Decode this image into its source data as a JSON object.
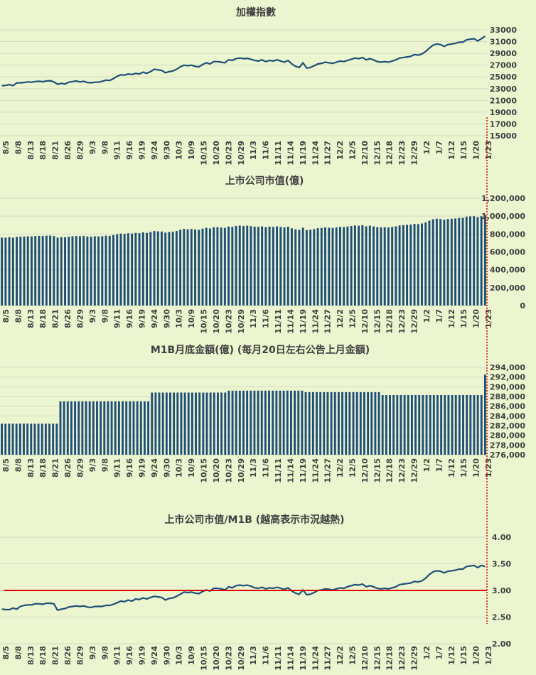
{
  "colors": {
    "background": "#ebf5cf",
    "series": "#1f4e79",
    "grid": "#d6dcc4",
    "reference_line": "#e00000",
    "marker_line": "#e00000",
    "text": "#404040"
  },
  "x_tick_labels": [
    "8/5",
    "8/8",
    "8/13",
    "8/18",
    "8/21",
    "8/26",
    "8/29",
    "9/3",
    "9/8",
    "9/11",
    "9/16",
    "9/19",
    "9/24",
    "9/30",
    "10/3",
    "10/9",
    "10/15",
    "10/20",
    "10/23",
    "10/29",
    "11/3",
    "11/6",
    "11/11",
    "11/14",
    "11/19",
    "11/24",
    "11/27",
    "12/2",
    "12/5",
    "12/10",
    "12/15",
    "12/18",
    "12/23",
    "12/29",
    "1/2",
    "1/7",
    "1/12",
    "1/15",
    "1/20",
    "1/23"
  ],
  "chart_data": [
    {
      "id": "taiex",
      "type": "line",
      "title": "加權指數",
      "y_tick_labels": [
        "33000",
        "31000",
        "29000",
        "27000",
        "25000",
        "23000",
        "21000",
        "19000",
        "17000",
        "15000"
      ],
      "ylim": [
        15000,
        33000
      ],
      "values": [
        23500,
        23550,
        23700,
        23500,
        23980,
        24000,
        24050,
        24150,
        24100,
        24200,
        24250,
        24180,
        24300,
        24350,
        24150,
        23750,
        23900,
        23800,
        24100,
        24200,
        24300,
        24150,
        24250,
        24050,
        24000,
        24100,
        24100,
        24250,
        24450,
        24400,
        24700,
        25100,
        25350,
        25300,
        25500,
        25400,
        25600,
        25500,
        25800,
        25600,
        25900,
        26300,
        26200,
        26100,
        25700,
        25900,
        26000,
        26300,
        26700,
        27000,
        26900,
        27000,
        26800,
        26700,
        27100,
        27400,
        27200,
        27600,
        27600,
        27500,
        27400,
        27900,
        27800,
        28100,
        28200,
        28100,
        28150,
        28000,
        27800,
        27700,
        27900,
        27600,
        27800,
        27700,
        27900,
        27700,
        27500,
        27800,
        27200,
        26800,
        26600,
        27400,
        26500,
        26600,
        26900,
        27200,
        27300,
        27500,
        27400,
        27300,
        27500,
        27700,
        27600,
        27800,
        28000,
        28200,
        28100,
        28300,
        27900,
        28100,
        27900,
        27600,
        27500,
        27600,
        27500,
        27700,
        27900,
        28200,
        28300,
        28400,
        28500,
        28800,
        28700,
        28900,
        29300,
        29900,
        30400,
        30600,
        30500,
        30200,
        30500,
        30600,
        30700,
        30900,
        30900,
        31300,
        31400,
        31500,
        31100,
        31500,
        31900
      ]
    },
    {
      "id": "market_cap",
      "type": "bar",
      "title": "上市公司市值(億)",
      "y_tick_labels": [
        "1,200,000",
        "1,000,000",
        "800,000",
        "600,000",
        "400,000",
        "200,000",
        "0"
      ],
      "ylim": [
        0,
        1200000
      ],
      "values": [
        760000,
        760000,
        765000,
        760000,
        768000,
        770000,
        772000,
        775000,
        773000,
        777000,
        780000,
        778000,
        781000,
        783000,
        777000,
        760000,
        765000,
        763000,
        770000,
        775000,
        778000,
        776000,
        778000,
        772000,
        770000,
        774000,
        773000,
        776000,
        782000,
        780000,
        788000,
        797000,
        804000,
        802000,
        808000,
        805000,
        812000,
        809000,
        818000,
        812000,
        822000,
        834000,
        830000,
        827000,
        815000,
        822000,
        825000,
        834000,
        847000,
        857000,
        853000,
        856000,
        850000,
        847000,
        860000,
        869000,
        862000,
        875000,
        876000,
        872000,
        869000,
        884000,
        880000,
        891000,
        894000,
        891000,
        893000,
        888000,
        882000,
        880000,
        885000,
        876000,
        882000,
        879000,
        885000,
        879000,
        873000,
        882000,
        864000,
        852000,
        846000,
        870000,
        843000,
        847000,
        855000,
        865000,
        868000,
        873000,
        870000,
        868000,
        873000,
        880000,
        877000,
        884000,
        890000,
        896000,
        893000,
        899000,
        886000,
        893000,
        885000,
        876000,
        873000,
        876000,
        873000,
        879000,
        886000,
        896000,
        899000,
        902000,
        905000,
        914000,
        911000,
        918000,
        930000,
        950000,
        965000,
        971000,
        968000,
        959000,
        968000,
        971000,
        974000,
        981000,
        981000,
        994000,
        997000,
        1000000,
        988000,
        1000000,
        1010000
      ]
    },
    {
      "id": "m1b",
      "type": "bar",
      "title": "M1B月底金額(億) (每月20日左右公告上月金額)",
      "y_tick_labels": [
        "294,000",
        "292,000",
        "290,000",
        "288,000",
        "286,000",
        "284,000",
        "282,000",
        "280,000",
        "278,000",
        "276,000"
      ],
      "ylim": [
        276000,
        294000
      ],
      "values": [
        282400,
        282400,
        282400,
        282400,
        282400,
        282400,
        282400,
        282400,
        282400,
        282400,
        282400,
        282400,
        282400,
        282400,
        282400,
        282400,
        287000,
        287000,
        287000,
        287000,
        287000,
        287000,
        287000,
        287000,
        287000,
        287000,
        287000,
        287000,
        287000,
        287000,
        287000,
        287000,
        287000,
        287000,
        287000,
        287000,
        287000,
        287000,
        287000,
        287000,
        287000,
        288800,
        288800,
        288800,
        288800,
        288800,
        288800,
        288800,
        288800,
        288800,
        288800,
        288800,
        288800,
        288800,
        288800,
        288800,
        288800,
        288800,
        288800,
        288800,
        288800,
        288800,
        289200,
        289200,
        289200,
        289200,
        289200,
        289200,
        289200,
        289200,
        289200,
        289200,
        289200,
        289200,
        289200,
        289200,
        289200,
        289200,
        289200,
        289200,
        289200,
        289200,
        289200,
        288900,
        288900,
        288900,
        288900,
        288900,
        288900,
        288900,
        288900,
        288900,
        288900,
        288900,
        288900,
        288900,
        288900,
        288900,
        288900,
        288900,
        288900,
        288900,
        288900,
        288900,
        288300,
        288300,
        288300,
        288300,
        288300,
        288300,
        288300,
        288300,
        288300,
        288300,
        288300,
        288300,
        288300,
        288300,
        288300,
        288300,
        288300,
        288300,
        288300,
        288300,
        288300,
        288300,
        288300,
        288300,
        288300,
        288300,
        288300,
        288300,
        292500
      ]
    },
    {
      "id": "ratio",
      "type": "line",
      "title": "上市公司市值/M1B (越高表示市況越熱)",
      "y_tick_labels": [
        "4.00",
        "3.50",
        "3.00",
        "2.50",
        "2.00"
      ],
      "ylim": [
        2.0,
        4.0
      ],
      "reference_value": 3.0,
      "values": [
        2.65,
        2.64,
        2.64,
        2.67,
        2.65,
        2.7,
        2.72,
        2.73,
        2.73,
        2.75,
        2.75,
        2.74,
        2.76,
        2.76,
        2.75,
        2.63,
        2.65,
        2.66,
        2.69,
        2.7,
        2.71,
        2.7,
        2.71,
        2.69,
        2.68,
        2.7,
        2.7,
        2.7,
        2.72,
        2.72,
        2.74,
        2.77,
        2.8,
        2.79,
        2.82,
        2.8,
        2.84,
        2.83,
        2.86,
        2.84,
        2.87,
        2.89,
        2.88,
        2.87,
        2.82,
        2.85,
        2.86,
        2.89,
        2.93,
        2.97,
        2.96,
        2.97,
        2.95,
        2.94,
        2.98,
        3.01,
        2.99,
        3.04,
        3.04,
        3.03,
        3.01,
        3.07,
        3.05,
        3.09,
        3.1,
        3.09,
        3.1,
        3.08,
        3.05,
        3.04,
        3.06,
        3.03,
        3.05,
        3.04,
        3.06,
        3.04,
        3.02,
        3.05,
        2.99,
        2.95,
        2.93,
        3.01,
        2.92,
        2.93,
        2.96,
        3.0,
        3.01,
        3.03,
        3.02,
        3.01,
        3.03,
        3.05,
        3.04,
        3.07,
        3.09,
        3.11,
        3.1,
        3.12,
        3.07,
        3.09,
        3.07,
        3.04,
        3.03,
        3.04,
        3.03,
        3.05,
        3.07,
        3.11,
        3.12,
        3.13,
        3.14,
        3.17,
        3.16,
        3.18,
        3.23,
        3.3,
        3.35,
        3.37,
        3.36,
        3.33,
        3.36,
        3.37,
        3.38,
        3.4,
        3.4,
        3.45,
        3.46,
        3.47,
        3.43,
        3.47,
        3.45
      ]
    }
  ]
}
